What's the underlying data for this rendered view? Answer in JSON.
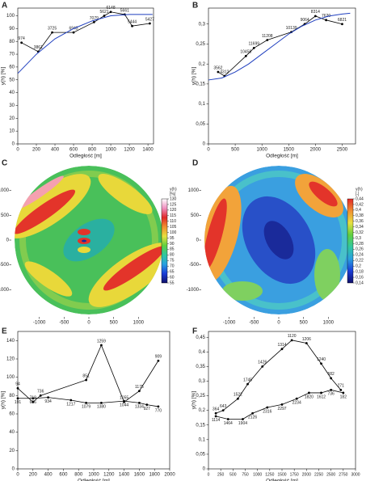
{
  "chart_data": [
    {
      "type": "line",
      "label": "A",
      "x_label": "Odległość [m]",
      "y_label": "y(h) [%]",
      "xlim": [
        0,
        1460
      ],
      "xticks": [
        0,
        200,
        400,
        600,
        800,
        1000,
        1200,
        1400
      ],
      "ylim": [
        0,
        106
      ],
      "yticks": [
        0,
        10,
        20,
        30,
        40,
        50,
        60,
        70,
        80,
        90,
        100
      ],
      "series": [
        {
          "color": "#000000",
          "markers": true,
          "x": [
            40,
            220,
            370,
            600,
            820,
            930,
            1000,
            1150,
            1230,
            1420
          ],
          "values": [
            79,
            72,
            87,
            87,
            95,
            100,
            103,
            101,
            92,
            94
          ],
          "point_labels": [
            974,
            3861,
            3725,
            6943,
            7079,
            5621,
            6148,
            5661,
            5444,
            5427
          ]
        },
        {
          "color": "#1f3fbf",
          "markers": false,
          "x": [
            0,
            200,
            400,
            600,
            800,
            1000,
            1200,
            1450
          ],
          "values": [
            55,
            70,
            82,
            90,
            96,
            100,
            101,
            101
          ]
        }
      ]
    },
    {
      "type": "line",
      "label": "B",
      "x_label": "Odległość [m]",
      "y_label": "y(h) [%]",
      "xlim": [
        0,
        2750
      ],
      "xticks": [
        0,
        500,
        1000,
        1500,
        2000,
        2500
      ],
      "ylim": [
        0,
        0.34
      ],
      "yticks": [
        0,
        {
          "value": 0.05,
          "label": "0,05"
        },
        {
          "value": 0.1,
          "label": "0,1"
        },
        {
          "value": 0.15,
          "label": "0,15"
        },
        {
          "value": 0.2,
          "label": "0,2"
        },
        {
          "value": 0.25,
          "label": "0,25"
        },
        {
          "value": 0.3,
          "label": "0,3"
        }
      ],
      "series": [
        {
          "color": "#000000",
          "markers": true,
          "x": [
            180,
            300,
            700,
            850,
            1100,
            1550,
            1800,
            2000,
            2200,
            2500
          ],
          "values": [
            0.18,
            0.17,
            0.22,
            0.24,
            0.26,
            0.28,
            0.3,
            0.32,
            0.31,
            0.3
          ],
          "point_labels": [
            3562,
            4312,
            10458,
            11699,
            11208,
            10139,
            9064,
            8314,
            7620,
            6821
          ]
        },
        {
          "color": "#1f3fbf",
          "markers": false,
          "x": [
            0,
            250,
            500,
            750,
            1000,
            1250,
            1500,
            1750,
            2000,
            2250,
            2500,
            2650
          ],
          "values": [
            0.16,
            0.165,
            0.18,
            0.2,
            0.225,
            0.25,
            0.275,
            0.295,
            0.31,
            0.32,
            0.325,
            0.327
          ]
        }
      ]
    },
    {
      "type": "heatmap",
      "label": "C",
      "xlim": [
        -1500,
        1500
      ],
      "ylim": [
        -1500,
        1500
      ],
      "xticks": [
        -1000,
        -500,
        0,
        500,
        1000
      ],
      "yticks": [
        -1000,
        -500,
        0,
        500,
        1000
      ],
      "colorbar_title": [
        "y(h)",
        "[%]"
      ],
      "clim": [
        55,
        130
      ],
      "cticks": [
        130,
        125,
        120,
        115,
        110,
        105,
        100,
        95,
        90,
        85,
        80,
        75,
        70,
        65,
        60,
        55
      ],
      "colorscale": [
        "#10106a",
        "#1a3cd8",
        "#2aa0e0",
        "#30c8a0",
        "#60d040",
        "#e8e040",
        "#f09030",
        "#e02828",
        "#f090c0",
        "#ffffff"
      ]
    },
    {
      "type": "heatmap",
      "label": "D",
      "xlim": [
        -1500,
        1500
      ],
      "ylim": [
        -1500,
        1500
      ],
      "xticks": [
        -1000,
        -500,
        0,
        500,
        1000
      ],
      "yticks": [
        -1000,
        -500,
        0,
        500,
        1000
      ],
      "colorbar_title": [
        "y(h)",
        "[-]"
      ],
      "clim": [
        0.14,
        0.44
      ],
      "cticks": [
        {
          "value": 0.44,
          "label": "0,44"
        },
        {
          "value": 0.42,
          "label": "0,42"
        },
        {
          "value": 0.4,
          "label": "0,4"
        },
        {
          "value": 0.38,
          "label": "0,38"
        },
        {
          "value": 0.36,
          "label": "0,36"
        },
        {
          "value": 0.34,
          "label": "0,34"
        },
        {
          "value": 0.32,
          "label": "0,32"
        },
        {
          "value": 0.3,
          "label": "0,3"
        },
        {
          "value": 0.28,
          "label": "0,28"
        },
        {
          "value": 0.26,
          "label": "0,26"
        },
        {
          "value": 0.24,
          "label": "0,24"
        },
        {
          "value": 0.22,
          "label": "0,22"
        },
        {
          "value": 0.2,
          "label": "0,2"
        },
        {
          "value": 0.18,
          "label": "0,18"
        },
        {
          "value": 0.16,
          "label": "0,16"
        },
        {
          "value": 0.14,
          "label": "0,14"
        }
      ],
      "colorscale": [
        "#10106a",
        "#1a3cd8",
        "#2aa0e0",
        "#30c8a0",
        "#60d040",
        "#e8e040",
        "#f09030",
        "#e02828"
      ]
    },
    {
      "type": "line",
      "label": "E",
      "x_label": "Odległość [m]",
      "y_label": "y(h) [%]",
      "xlim": [
        0,
        2000
      ],
      "xticks": [
        0,
        200,
        400,
        600,
        800,
        1000,
        1200,
        1400,
        1600,
        1800,
        2000
      ],
      "ylim": [
        0,
        150
      ],
      "yticks": [
        0,
        20,
        40,
        60,
        80,
        100,
        120,
        140
      ],
      "series": [
        {
          "color": "#000000",
          "markers": true,
          "x": [
            0,
            200,
            300,
            900,
            1100,
            1400,
            1600,
            1850
          ],
          "values": [
            88,
            73,
            80,
            97,
            135,
            73,
            85,
            118
          ],
          "point_labels": [
            94,
            718,
            736,
            851,
            1259,
            1055,
            1175,
            909
          ]
        },
        {
          "color": "#000000",
          "markers": true,
          "x": [
            0,
            200,
            400,
            700,
            900,
            1100,
            1400,
            1600,
            1700,
            1850
          ],
          "values": [
            77,
            77,
            78,
            75,
            72,
            72,
            74,
            72,
            70,
            68
          ],
          "point_labels": [
            191,
            696,
            934,
            1217,
            1079,
            1380,
            1044,
            1334,
            927,
            770
          ]
        }
      ]
    },
    {
      "type": "line",
      "label": "F",
      "x_label": "Odległość [m]",
      "y_label": "y(h) [%]",
      "xlim": [
        0,
        3000
      ],
      "xticks": [
        0,
        250,
        500,
        750,
        1000,
        1250,
        1500,
        1750,
        2000,
        2250,
        2500,
        2750,
        3000
      ],
      "ylim": [
        0,
        0.47
      ],
      "yticks": [
        0,
        {
          "value": 0.05,
          "label": "0,05"
        },
        {
          "value": 0.1,
          "label": "0,1"
        },
        {
          "value": 0.15,
          "label": "0,15"
        },
        {
          "value": 0.2,
          "label": "0,2"
        },
        {
          "value": 0.25,
          "label": "0,25"
        },
        {
          "value": 0.3,
          "label": "0,3"
        },
        {
          "value": 0.35,
          "label": "0,35"
        },
        {
          "value": 0.4,
          "label": "0,4"
        },
        {
          "value": 0.45,
          "label": "0,45"
        }
      ],
      "series": [
        {
          "color": "#000000",
          "markers": true,
          "x": [
            150,
            300,
            600,
            800,
            1100,
            1500,
            1700,
            2000,
            2300,
            2500,
            2700
          ],
          "values": [
            0.19,
            0.2,
            0.24,
            0.29,
            0.35,
            0.41,
            0.44,
            0.43,
            0.36,
            0.31,
            0.27
          ],
          "point_labels": [
            364,
            643,
            1522,
            1745,
            1426,
            1314,
            1120,
            1206,
            1240,
            582,
            271
          ]
        },
        {
          "color": "#000000",
          "markers": true,
          "x": [
            150,
            400,
            700,
            900,
            1200,
            1500,
            1800,
            2050,
            2300,
            2500,
            2750
          ],
          "values": [
            0.18,
            0.17,
            0.17,
            0.19,
            0.21,
            0.22,
            0.24,
            0.26,
            0.26,
            0.27,
            0.26
          ],
          "point_labels": [
            1114,
            1464,
            1904,
            2126,
            2316,
            2297,
            2234,
            1820,
            1612,
            736,
            182
          ]
        }
      ]
    }
  ]
}
